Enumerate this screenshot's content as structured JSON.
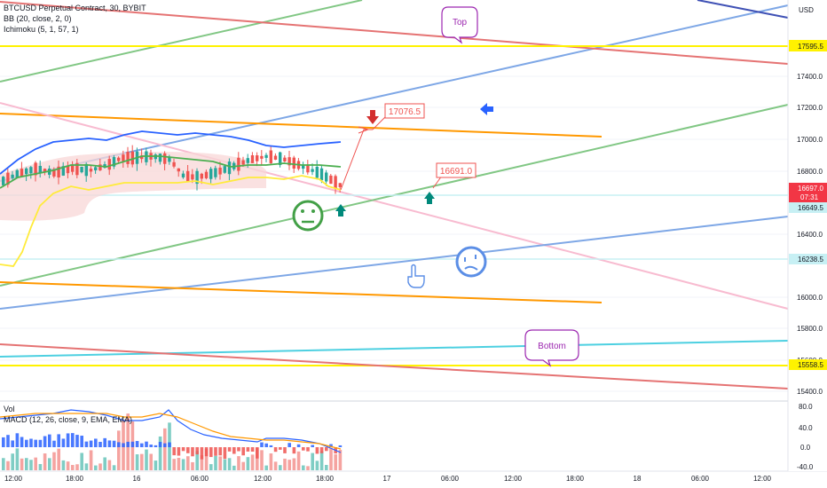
{
  "legend": {
    "symbol": "BTCUSD Perpetual Contract, 30, BYBIT",
    "bb": "BB (20, close, 2, 0)",
    "ichimoku": "Ichimoku (5, 1, 57, 1)",
    "vol": "Vol",
    "macd": "MACD (12, 26, close, 9, EMA, EMA)"
  },
  "price_axis": {
    "currency": "USD",
    "ticks": [
      "17400.0",
      "17200.0",
      "17000.0",
      "16800.0",
      "16400.0",
      "16000.0",
      "15800.0",
      "15600.0",
      "15400.0"
    ],
    "badges": [
      {
        "text": "17595.5",
        "bg": "#fff200",
        "fg": "#131722"
      },
      {
        "text": "16697.0",
        "bg": "#f23645",
        "fg": "#ffffff"
      },
      {
        "text": "07:31",
        "bg": "#f23645",
        "fg": "#ffffff"
      },
      {
        "text": "16649.5",
        "bg": "#c7f0f4",
        "fg": "#131722"
      },
      {
        "text": "16238.5",
        "bg": "#c7f0f4",
        "fg": "#131722"
      },
      {
        "text": "15558.5",
        "bg": "#fff200",
        "fg": "#131722"
      }
    ]
  },
  "macd_axis": {
    "ticks": [
      "80.0",
      "40.0",
      "0.0",
      "-40.0"
    ]
  },
  "time_axis": {
    "ticks": [
      "12:00",
      "18:00",
      "16",
      "06:00",
      "12:00",
      "18:00",
      "17",
      "06:00",
      "12:00",
      "18:00",
      "18",
      "06:00",
      "12:00"
    ]
  },
  "annotations": {
    "top": "Top",
    "bottom": "Bottom",
    "target_high": "17076.5",
    "target_low": "16691.0"
  },
  "colors": {
    "up": "#26a69a",
    "down": "#ef5350",
    "bb_basis": "#2962ff",
    "tenkan": "#4caf50",
    "kijun": "#ffeb3b",
    "orange": "#ff9800",
    "red_line": "#e57373",
    "blue_line": "#7ea7e6",
    "green_line": "#81c784",
    "annotation_purple": "#9c27b0"
  },
  "icons": {
    "neutral_face": "neutral-face-icon",
    "confused_face": "confused-face-icon",
    "pointer_hand": "hand-pointer-icon",
    "blue_arrow": "blue-arrow-left-icon",
    "green_arrow": "green-arrow-up-icon",
    "red_arrow": "red-arrow-down-icon"
  }
}
